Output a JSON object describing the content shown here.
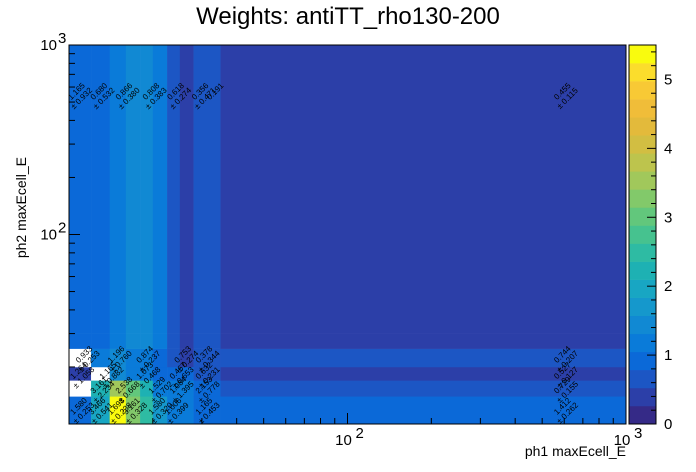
{
  "chart_data": {
    "type": "heatmap",
    "title": "Weights: antiTT_rho130-200",
    "xlabel": "ph1 maxEcell_E",
    "ylabel": "ph2 maxEcell_E",
    "x_scale": "log",
    "y_scale": "log",
    "xlim": [
      10,
      1000
    ],
    "ylim": [
      10,
      1000
    ],
    "zlim": [
      0,
      5.5
    ],
    "x_ticks": [
      {
        "base": "10",
        "exp": "2",
        "value": 100
      },
      {
        "base": "10",
        "exp": "3",
        "value": 1000
      }
    ],
    "y_ticks": [
      {
        "base": "10",
        "exp": "2",
        "value": 100
      },
      {
        "base": "10",
        "exp": "3",
        "value": 1000
      }
    ],
    "z_ticks": [
      "0",
      "1",
      "2",
      "3",
      "4",
      "5"
    ],
    "palette": [
      "#352a87",
      "#2c3fa8",
      "#1c56c4",
      "#0b69d8",
      "#0a7bd9",
      "#1189d3",
      "#1598cc",
      "#18a6c3",
      "#1eb1b3",
      "#2ebba3",
      "#46c28f",
      "#62c77c",
      "#82c96a",
      "#a1c85b",
      "#bdc44d",
      "#d2be42",
      "#e3ba3b",
      "#f0bd39",
      "#f8c935",
      "#fbdd2c",
      "#f9fb0e"
    ],
    "x_edges": [
      10,
      12,
      14,
      16,
      18,
      20,
      22.5,
      25,
      28,
      35,
      1000
    ],
    "y_edges": [
      10,
      14,
      17,
      20,
      25,
      30,
      1000
    ],
    "cells": [
      [
        1.0,
        2.0,
        5.4,
        3.2,
        2.4,
        1.6,
        1.3,
        1.1,
        1.0,
        0.8
      ],
      [
        0.2,
        2.1,
        3.6,
        3.0,
        2.1,
        1.3,
        1.1,
        1.1,
        0.9,
        0.7
      ],
      [
        0.3,
        1.1,
        1.5,
        1.3,
        1.2,
        0.9,
        0.8,
        0.8,
        0.6,
        0.5
      ],
      [
        null,
        1.2,
        1.5,
        1.2,
        1.2,
        1.0,
        0.7,
        0.3,
        0.7,
        0.7
      ],
      [
        0.8,
        1.0,
        1.1,
        1.5,
        1.4,
        1.2,
        0.7,
        0.4,
        0.6,
        0.5
      ],
      [
        0.9,
        1.0,
        1.1,
        1.5,
        1.4,
        1.2,
        0.6,
        0.5,
        0.6,
        0.5
      ]
    ],
    "white_cells": [
      [
        3,
        0
      ],
      [
        1,
        0
      ],
      [
        2,
        1
      ]
    ],
    "annotations": [
      {
        "x": 11,
        "y": 12,
        "v": "1.580",
        "e": "± 0.253"
      },
      {
        "x": 12.8,
        "y": 12,
        "v": "3.466",
        "e": "± 0.541"
      },
      {
        "x": 15,
        "y": 12,
        "v": "1.698",
        "e": "± 0.238"
      },
      {
        "x": 17,
        "y": 12,
        "v": "3.161",
        "e": "± 0.328"
      },
      {
        "x": 21,
        "y": 12,
        "v": "1.580",
        "e": "± 0.320"
      },
      {
        "x": 24,
        "y": 12,
        "v": "1.006",
        "e": "± 0.399"
      },
      {
        "x": 31,
        "y": 12,
        "v": "1.165",
        "e": "± 0.453"
      },
      {
        "x": 600,
        "y": 12,
        "v": "1.412",
        "e": "± 0.262"
      },
      {
        "x": 13,
        "y": 15.5,
        "v": "3.161",
        "e": "± 2.234"
      },
      {
        "x": 16,
        "y": 15.5,
        "v": "2.538",
        "e": "± 0.668"
      },
      {
        "x": 21,
        "y": 15.5,
        "v": "1.529",
        "e": "± 0.702"
      },
      {
        "x": 25,
        "y": 15.5,
        "v": "1.084",
        "e": "± 1.395"
      },
      {
        "x": 31,
        "y": 15.5,
        "v": "2.153",
        "e": "± 0.778"
      },
      {
        "x": 600,
        "y": 15.5,
        "v": "0.729",
        "e": "± 0.155"
      },
      {
        "x": 11,
        "y": 18.5,
        "v": "1.264",
        "e": "± 1.058"
      },
      {
        "x": 14,
        "y": 18.5,
        "v": "1.165",
        "e": "± 0.882"
      },
      {
        "x": 19,
        "y": 18.5,
        "v": "1.073",
        "e": "± 0.468"
      },
      {
        "x": 25,
        "y": 18.5,
        "v": "0.467",
        "e": "± 0.653"
      },
      {
        "x": 31,
        "y": 18.5,
        "v": "0.632",
        "e": "± 0.231"
      },
      {
        "x": 600,
        "y": 18.5,
        "v": "0.527",
        "e": "± 0.127"
      },
      {
        "x": 11.5,
        "y": 22.5,
        "v": "0.933",
        "e": "± 0.253"
      },
      {
        "x": 15,
        "y": 22.5,
        "v": "1.196",
        "e": "± 0.760"
      },
      {
        "x": 19,
        "y": 22.5,
        "v": "0.874",
        "e": "± 0.237"
      },
      {
        "x": 26,
        "y": 22.5,
        "v": "0.753",
        "e": "± 0.274"
      },
      {
        "x": 31,
        "y": 22.5,
        "v": "0.378",
        "e": "± 0.344"
      },
      {
        "x": 600,
        "y": 22.5,
        "v": "0.744",
        "e": "± 0.207"
      },
      {
        "x": 10.8,
        "y": 550,
        "v": "1.165",
        "e": "± 0.932"
      },
      {
        "x": 13,
        "y": 550,
        "v": "0.680",
        "e": "± 0.532"
      },
      {
        "x": 16,
        "y": 550,
        "v": "0.866",
        "e": "± 0.380"
      },
      {
        "x": 20,
        "y": 550,
        "v": "0.808",
        "e": "± 0.383"
      },
      {
        "x": 24.5,
        "y": 550,
        "v": "0.618",
        "e": "± 0.274"
      },
      {
        "x": 30,
        "y": 550,
        "v": "0.356",
        "e": "± 0.471"
      },
      {
        "x": 34,
        "y": 550,
        "v": "0.191",
        "e": ""
      },
      {
        "x": 600,
        "y": 550,
        "v": "0.455",
        "e": "± 0.115"
      }
    ]
  }
}
